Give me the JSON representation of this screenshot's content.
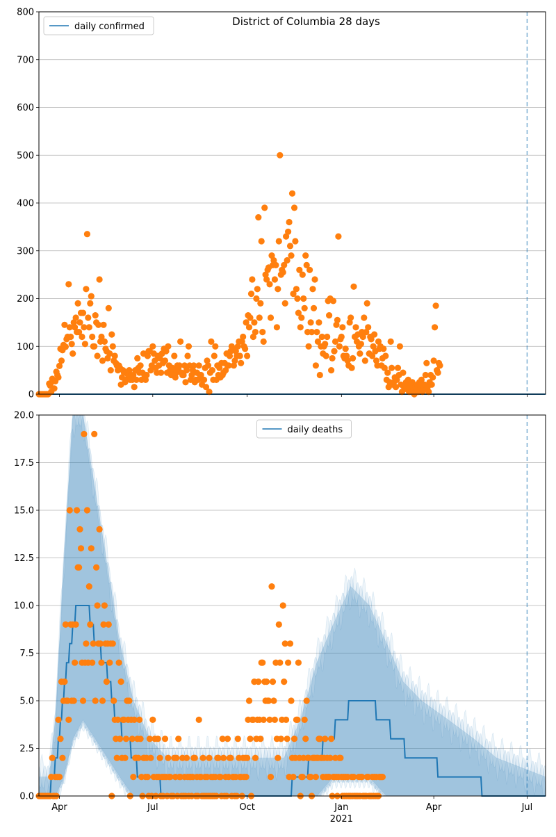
{
  "chart_data": [
    {
      "type": "scatter",
      "title": "District of Columbia 28 days",
      "xlabel": "",
      "ylabel": "",
      "ylim": [
        0,
        800
      ],
      "yticks": [
        0,
        100,
        200,
        300,
        400,
        500,
        600,
        700,
        800
      ],
      "x_range": [
        "2020-03-12",
        "2021-07-19"
      ],
      "x_ticks": [
        {
          "date": "2020-04-01",
          "label": "Apr"
        },
        {
          "date": "2020-07-01",
          "label": "Jul"
        },
        {
          "date": "2020-10-01",
          "label": "Oct"
        },
        {
          "date": "2021-01-01",
          "label": "Jan"
        },
        {
          "date": "2021-04-01",
          "label": "Apr"
        },
        {
          "date": "2021-07-01",
          "label": "Jul"
        }
      ],
      "show_xtick_labels": false,
      "grid": "y",
      "legend": {
        "position": "top-left",
        "entries": [
          "daily confirmed"
        ]
      },
      "vline": "2021-07-01",
      "series": [
        {
          "name": "daily confirmed",
          "kind": "line",
          "color": "#1f77b4",
          "values": "constant 0"
        },
        {
          "kind": "points",
          "color": "#ff7f0e",
          "start": "2020-03-12",
          "values": [
            0,
            0,
            0,
            0,
            0,
            0,
            0,
            0,
            0,
            0,
            22,
            18,
            5,
            32,
            27,
            12,
            27,
            47,
            40,
            35,
            59,
            95,
            70,
            92,
            103,
            145,
            99,
            115,
            120,
            230,
            140,
            120,
            105,
            85,
            150,
            140,
            160,
            130,
            190,
            130,
            150,
            170,
            120,
            170,
            140,
            105,
            220,
            335,
            160,
            140,
            190,
            205,
            120,
            100,
            100,
            165,
            150,
            80,
            145,
            240,
            110,
            120,
            70,
            145,
            110,
            95,
            90,
            75,
            180,
            85,
            50,
            125,
            100,
            70,
            80,
            65,
            60,
            50,
            60,
            55,
            20,
            35,
            50,
            45,
            25,
            30,
            45,
            40,
            50,
            30,
            40,
            30,
            40,
            15,
            50,
            30,
            75,
            55,
            45,
            60,
            30,
            45,
            85,
            40,
            30,
            40,
            80,
            90,
            90,
            50,
            60,
            100,
            85,
            70,
            55,
            45,
            80,
            60,
            75,
            45,
            85,
            65,
            95,
            70,
            90,
            45,
            100,
            60,
            50,
            40,
            55,
            50,
            80,
            35,
            45,
            60,
            55,
            60,
            110,
            45,
            40,
            40,
            60,
            25,
            50,
            80,
            100,
            60,
            30,
            40,
            50,
            60,
            25,
            30,
            45,
            30,
            60,
            40,
            40,
            20,
            30,
            30,
            55,
            15,
            70,
            60,
            5,
            45,
            110,
            50,
            30,
            80,
            100,
            30,
            60,
            40,
            55,
            35,
            65,
            40,
            45,
            65,
            50,
            85,
            60,
            60,
            80,
            90,
            100,
            95,
            60,
            70,
            90,
            80,
            100,
            110,
            80,
            65,
            110,
            120,
            100,
            95,
            150,
            80,
            165,
            140,
            160,
            210,
            240,
            120,
            150,
            130,
            200,
            220,
            370,
            160,
            190,
            320,
            130,
            110,
            390,
            250,
            240,
            260,
            265,
            230,
            160,
            290,
            270,
            280,
            240,
            270,
            140,
            220,
            320,
            500,
            250,
            260,
            255,
            270,
            190,
            330,
            280,
            340,
            360,
            310,
            290,
            420,
            210,
            390,
            320,
            220,
            200,
            170,
            260,
            140,
            160,
            250,
            200,
            180,
            290,
            270,
            130,
            100,
            260,
            150,
            130,
            220,
            180,
            240,
            60,
            130,
            110,
            150,
            40,
            100,
            120,
            85,
            100,
            105,
            80,
            120,
            195,
            165,
            200,
            50,
            75,
            195,
            90,
            110,
            145,
            155,
            330,
            100,
            115,
            120,
            140,
            80,
            75,
            95,
            80,
            70,
            60,
            150,
            160,
            55,
            75,
            225,
            120,
            140,
            110,
            125,
            100,
            85,
            105,
            130,
            120,
            160,
            70,
            130,
            190,
            140,
            85,
            120,
            115,
            80,
            100,
            125,
            90,
            70,
            60,
            110,
            95,
            100,
            60,
            75,
            95,
            55,
            80,
            30,
            45,
            15,
            25,
            110,
            55,
            20,
            25,
            35,
            15,
            30,
            55,
            40,
            100,
            20,
            5,
            45,
            15,
            20,
            25,
            10,
            30,
            5,
            15,
            20,
            25,
            10,
            0,
            15,
            10,
            20,
            5,
            25,
            15,
            30,
            5,
            10,
            20,
            40,
            65,
            15,
            5,
            25,
            40,
            20,
            35,
            70,
            140,
            185,
            50,
            45,
            65,
            60
          ]
        }
      ]
    },
    {
      "type": "scatter",
      "title": "",
      "xlabel": "2021",
      "ylabel": "",
      "ylim": [
        0,
        20
      ],
      "yticks": [
        0.0,
        2.5,
        5.0,
        7.5,
        10.0,
        12.5,
        15.0,
        17.5,
        20.0
      ],
      "ytick_labels": [
        "0.0",
        "2.5",
        "5.0",
        "7.5",
        "10.0",
        "12.5",
        "15.0",
        "17.5",
        "20.0"
      ],
      "x_range": [
        "2020-03-12",
        "2021-07-19"
      ],
      "x_ticks": [
        {
          "date": "2020-04-01",
          "label": "Apr"
        },
        {
          "date": "2020-07-01",
          "label": "Jul"
        },
        {
          "date": "2020-10-01",
          "label": "Oct"
        },
        {
          "date": "2021-01-01",
          "label": "Jan"
        },
        {
          "date": "2021-04-01",
          "label": "Apr"
        },
        {
          "date": "2021-07-01",
          "label": "Jul"
        }
      ],
      "grid": "y",
      "legend": {
        "position": "top-center",
        "entries": [
          "daily deaths"
        ]
      },
      "vline": "2021-07-01",
      "series": [
        {
          "name": "daily deaths",
          "kind": "line",
          "color": "#1f77b4",
          "start": "2020-03-12",
          "knots": [
            [
              "2020-03-12",
              0
            ],
            [
              "2020-03-22",
              0
            ],
            [
              "2020-03-26",
              1
            ],
            [
              "2020-04-01",
              3
            ],
            [
              "2020-04-06",
              6
            ],
            [
              "2020-04-12",
              8
            ],
            [
              "2020-04-18",
              10
            ],
            [
              "2020-04-28",
              10
            ],
            [
              "2020-05-06",
              8
            ],
            [
              "2020-05-16",
              7
            ],
            [
              "2020-05-26",
              4
            ],
            [
              "2020-06-06",
              3
            ],
            [
              "2020-06-18",
              1
            ],
            [
              "2020-07-01",
              1
            ],
            [
              "2020-07-15",
              0
            ],
            [
              "2020-11-06",
              0
            ],
            [
              "2020-11-22",
              1
            ],
            [
              "2020-12-08",
              2
            ],
            [
              "2020-12-20",
              3
            ],
            [
              "2021-01-01",
              4
            ],
            [
              "2021-01-15",
              5
            ],
            [
              "2021-01-28",
              5
            ],
            [
              "2021-02-10",
              4
            ],
            [
              "2021-02-25",
              3
            ],
            [
              "2021-03-10",
              2
            ],
            [
              "2021-03-25",
              2
            ],
            [
              "2021-04-15",
              1
            ],
            [
              "2021-05-10",
              1
            ],
            [
              "2021-05-25",
              0
            ],
            [
              "2021-07-19",
              0
            ]
          ]
        },
        {
          "kind": "band",
          "color": "#1f77b4",
          "knots": [
            [
              "2020-03-12",
              0,
              1
            ],
            [
              "2020-03-22",
              0,
              1
            ],
            [
              "2020-03-28",
              0,
              4
            ],
            [
              "2020-04-05",
              1,
              12
            ],
            [
              "2020-04-14",
              3,
              20
            ],
            [
              "2020-04-24",
              4,
              20
            ],
            [
              "2020-05-06",
              3,
              16
            ],
            [
              "2020-05-18",
              2,
              12
            ],
            [
              "2020-05-30",
              1,
              8
            ],
            [
              "2020-06-12",
              0,
              5
            ],
            [
              "2020-06-28",
              0,
              3
            ],
            [
              "2020-07-15",
              0,
              2
            ],
            [
              "2020-11-06",
              0,
              2
            ],
            [
              "2020-11-22",
              0,
              4
            ],
            [
              "2020-12-08",
              0,
              7
            ],
            [
              "2020-12-24",
              1,
              9
            ],
            [
              "2021-01-10",
              1,
              11
            ],
            [
              "2021-01-28",
              1,
              10
            ],
            [
              "2021-02-14",
              0,
              8
            ],
            [
              "2021-03-02",
              0,
              6
            ],
            [
              "2021-03-20",
              0,
              5
            ],
            [
              "2021-04-15",
              0,
              4
            ],
            [
              "2021-05-10",
              0,
              3
            ],
            [
              "2021-06-01",
              0,
              2
            ],
            [
              "2021-07-19",
              0,
              1
            ]
          ]
        },
        {
          "kind": "points",
          "color": "#ff7f0e",
          "start": "2020-03-12",
          "values": [
            0,
            0,
            0,
            0,
            0,
            0,
            0,
            0,
            0,
            0,
            0,
            0,
            1,
            2,
            0,
            0,
            1,
            0,
            1,
            4,
            1,
            3,
            6,
            2,
            5,
            6,
            9,
            5,
            5,
            4,
            15,
            9,
            5,
            9,
            5,
            7,
            9,
            15,
            12,
            12,
            14,
            13,
            7,
            5,
            19,
            7,
            8,
            15,
            7,
            11,
            9,
            13,
            7,
            8,
            19,
            5,
            12,
            10,
            8,
            14,
            8,
            7,
            5,
            9,
            10,
            8,
            6,
            8,
            9,
            7,
            8,
            0,
            8,
            5,
            4,
            3,
            2,
            4,
            7,
            3,
            6,
            2,
            4,
            4,
            2,
            3,
            5,
            4,
            5,
            0,
            4,
            3,
            1,
            4,
            2,
            2,
            3,
            2,
            4,
            3,
            1,
            0,
            2,
            2,
            1,
            2,
            1,
            0,
            3,
            2,
            0,
            4,
            1,
            3,
            0,
            1,
            3,
            1,
            2,
            0,
            1,
            0,
            1,
            3,
            1,
            0,
            2,
            1,
            1,
            0,
            0,
            0,
            2,
            1,
            2,
            0,
            3,
            1,
            1,
            0,
            2,
            0,
            1,
            0,
            2,
            1,
            0,
            1,
            1,
            0,
            1,
            2,
            2,
            0,
            1,
            0,
            4,
            1,
            1,
            0,
            2,
            0,
            1,
            0,
            1,
            0,
            2,
            0,
            1,
            0,
            1,
            0,
            1,
            0,
            2,
            2,
            1,
            1,
            0,
            3,
            2,
            0,
            1,
            0,
            3,
            1,
            2,
            2,
            0,
            1,
            1,
            0,
            1,
            0,
            3,
            2,
            1,
            1,
            0,
            2,
            1,
            2,
            1,
            2,
            4,
            5,
            3,
            0,
            4,
            4,
            6,
            2,
            3,
            4,
            6,
            4,
            3,
            7,
            7,
            4,
            6,
            5,
            6,
            5,
            5,
            4,
            1,
            11,
            6,
            5,
            4,
            7,
            3,
            2,
            9,
            7,
            3,
            4,
            10,
            6,
            8,
            4,
            3,
            7,
            1,
            8,
            5,
            2,
            1,
            3,
            2,
            4,
            4,
            7,
            2,
            0,
            1,
            1,
            2,
            4,
            3,
            5,
            2,
            2,
            1,
            1,
            0,
            2,
            2,
            2,
            1,
            2,
            2,
            3,
            3,
            2,
            2,
            1,
            2,
            3,
            1,
            2,
            1,
            1,
            2,
            3,
            0,
            1,
            1,
            2,
            1,
            0,
            1,
            2,
            2,
            1,
            0,
            1,
            0,
            1,
            0,
            1,
            0,
            0,
            0,
            1,
            0,
            1,
            0,
            0,
            0,
            0,
            1,
            0,
            1,
            1,
            0,
            0,
            0,
            0,
            1,
            1,
            0,
            0,
            0,
            1,
            0,
            1,
            0,
            1,
            0,
            0,
            1,
            1,
            1,
            1
          ]
        }
      ]
    }
  ]
}
